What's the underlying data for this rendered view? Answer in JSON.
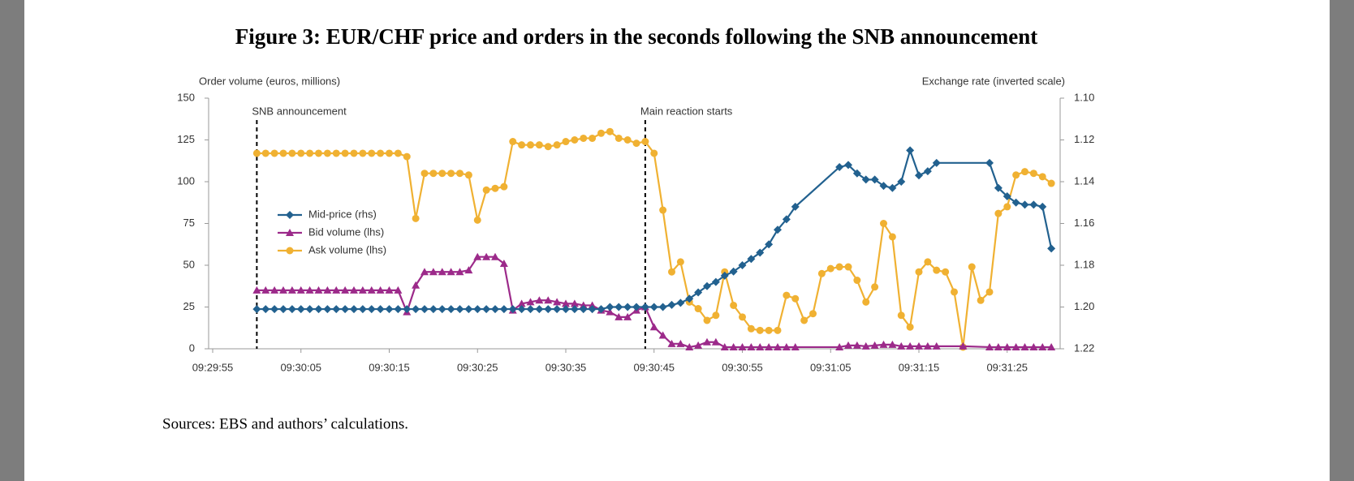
{
  "chart_data": {
    "type": "line",
    "title": "Figure 3: EUR/CHF price and orders in the seconds following the SNB announcement",
    "y_label": "Order volume (euros, millions)",
    "y2_label": "Exchange rate (inverted scale)",
    "source": "Sources: EBS and authors’ calculations.",
    "legend": "center left",
    "grid": false,
    "xlim": [
      "09:29:55",
      "09:31:31"
    ],
    "xticks": [
      "09:29:55",
      "09:30:05",
      "09:30:15",
      "09:30:25",
      "09:30:35",
      "09:30:45",
      "09:30:55",
      "09:31:05",
      "09:31:15",
      "09:31:25"
    ],
    "ylim": [
      0,
      150
    ],
    "yticks": [
      0,
      25,
      50,
      75,
      100,
      125,
      150
    ],
    "y2lim": [
      1.22,
      1.1
    ],
    "y2ticks": [
      1.22,
      {
        "value": 1.2,
        "label": "1.20"
      },
      1.18,
      1.16,
      1.14,
      1.12,
      {
        "value": 1.1,
        "label": "1.10"
      }
    ],
    "annotations": [
      {
        "text": "SNB announcement",
        "x": "09:30:00"
      },
      {
        "text": "Main reaction starts",
        "x": "09:30:44"
      }
    ],
    "series": [
      {
        "name": "Mid-price (rhs)",
        "color": "#22618f",
        "marker": "diamond",
        "axis": "y2",
        "x": [
          "09:30:00",
          "09:30:01",
          "09:30:02",
          "09:30:03",
          "09:30:04",
          "09:30:05",
          "09:30:06",
          "09:30:07",
          "09:30:08",
          "09:30:09",
          "09:30:10",
          "09:30:11",
          "09:30:12",
          "09:30:13",
          "09:30:14",
          "09:30:15",
          "09:30:16",
          "09:30:17",
          "09:30:18",
          "09:30:19",
          "09:30:20",
          "09:30:21",
          "09:30:22",
          "09:30:23",
          "09:30:24",
          "09:30:25",
          "09:30:26",
          "09:30:27",
          "09:30:28",
          "09:30:29",
          "09:30:30",
          "09:30:31",
          "09:30:32",
          "09:30:33",
          "09:30:34",
          "09:30:35",
          "09:30:36",
          "09:30:37",
          "09:30:38",
          "09:30:39",
          "09:30:40",
          "09:30:41",
          "09:30:42",
          "09:30:43",
          "09:30:44",
          "09:30:45",
          "09:30:46",
          "09:30:47",
          "09:30:48",
          "09:30:49",
          "09:30:50",
          "09:30:51",
          "09:30:52",
          "09:30:53",
          "09:30:54",
          "09:30:55",
          "09:30:56",
          "09:30:57",
          "09:30:58",
          "09:30:59",
          "09:31:00",
          "09:31:01",
          "09:31:06",
          "09:31:07",
          "09:31:08",
          "09:31:09",
          "09:31:10",
          "09:31:11",
          "09:31:12",
          "09:31:13",
          "09:31:14",
          "09:31:15",
          "09:31:16",
          "09:31:17",
          "09:31:23",
          "09:31:24",
          "09:31:25",
          "09:31:26",
          "09:31:27",
          "09:31:28",
          "09:31:29",
          "09:31:30"
        ],
        "values": [
          1.201,
          1.201,
          1.201,
          1.201,
          1.201,
          1.201,
          1.201,
          1.201,
          1.201,
          1.201,
          1.201,
          1.201,
          1.201,
          1.201,
          1.201,
          1.201,
          1.201,
          1.201,
          1.201,
          1.201,
          1.201,
          1.201,
          1.201,
          1.201,
          1.201,
          1.201,
          1.201,
          1.201,
          1.201,
          1.201,
          1.201,
          1.201,
          1.201,
          1.201,
          1.201,
          1.201,
          1.201,
          1.201,
          1.201,
          1.201,
          1.2,
          1.2,
          1.2,
          1.2,
          1.2,
          1.2,
          1.2,
          1.199,
          1.198,
          1.196,
          1.193,
          1.19,
          1.188,
          1.185,
          1.183,
          1.18,
          1.177,
          1.174,
          1.17,
          1.163,
          1.158,
          1.152,
          1.133,
          1.132,
          1.136,
          1.139,
          1.139,
          1.142,
          1.143,
          1.14,
          1.125,
          1.137,
          1.135,
          1.131,
          1.131,
          1.143,
          1.147,
          1.15,
          1.151,
          1.151,
          1.152,
          1.172
        ]
      },
      {
        "name": "Bid volume (lhs)",
        "color": "#9c2a8a",
        "marker": "triangle",
        "x": [
          "09:30:00",
          "09:30:01",
          "09:30:02",
          "09:30:03",
          "09:30:04",
          "09:30:05",
          "09:30:06",
          "09:30:07",
          "09:30:08",
          "09:30:09",
          "09:30:10",
          "09:30:11",
          "09:30:12",
          "09:30:13",
          "09:30:14",
          "09:30:15",
          "09:30:16",
          "09:30:17",
          "09:30:18",
          "09:30:19",
          "09:30:20",
          "09:30:21",
          "09:30:22",
          "09:30:23",
          "09:30:24",
          "09:30:25",
          "09:30:26",
          "09:30:27",
          "09:30:28",
          "09:30:29",
          "09:30:30",
          "09:30:31",
          "09:30:32",
          "09:30:33",
          "09:30:34",
          "09:30:35",
          "09:30:36",
          "09:30:37",
          "09:30:38",
          "09:30:39",
          "09:30:40",
          "09:30:41",
          "09:30:42",
          "09:30:43",
          "09:30:44",
          "09:30:45",
          "09:30:46",
          "09:30:47",
          "09:30:48",
          "09:30:49",
          "09:30:50",
          "09:30:51",
          "09:30:52",
          "09:30:53",
          "09:30:54",
          "09:30:55",
          "09:30:56",
          "09:30:57",
          "09:30:58",
          "09:30:59",
          "09:31:00",
          "09:31:01",
          "09:31:06",
          "09:31:07",
          "09:31:08",
          "09:31:09",
          "09:31:10",
          "09:31:11",
          "09:31:12",
          "09:31:13",
          "09:31:14",
          "09:31:15",
          "09:31:16",
          "09:31:17",
          "09:31:20",
          "09:31:23",
          "09:31:24",
          "09:31:25",
          "09:31:26",
          "09:31:27",
          "09:31:28",
          "09:31:29",
          "09:31:30"
        ],
        "values": [
          35,
          35,
          35,
          35,
          35,
          35,
          35,
          35,
          35,
          35,
          35,
          35,
          35,
          35,
          35,
          35,
          35,
          22,
          38,
          46,
          46,
          46,
          46,
          46,
          47,
          55,
          55,
          55,
          51,
          23,
          27,
          28,
          29,
          29,
          28,
          27,
          27,
          26,
          26,
          23,
          22,
          19,
          19,
          23,
          25,
          13,
          8,
          3,
          3,
          1,
          2,
          4,
          4,
          1,
          1,
          1,
          1,
          1,
          1,
          1,
          1,
          1,
          1,
          2,
          2,
          1.5,
          2,
          2.5,
          2.5,
          1.5,
          1.5,
          1.5,
          1.5,
          1.5,
          1.5,
          1,
          1,
          1,
          1,
          1,
          1,
          1,
          1
        ]
      },
      {
        "name": "Ask volume (lhs)",
        "color": "#f0b132",
        "marker": "circle",
        "x": [
          "09:30:00",
          "09:30:01",
          "09:30:02",
          "09:30:03",
          "09:30:04",
          "09:30:05",
          "09:30:06",
          "09:30:07",
          "09:30:08",
          "09:30:09",
          "09:30:10",
          "09:30:11",
          "09:30:12",
          "09:30:13",
          "09:30:14",
          "09:30:15",
          "09:30:16",
          "09:30:17",
          "09:30:18",
          "09:30:19",
          "09:30:20",
          "09:30:21",
          "09:30:22",
          "09:30:23",
          "09:30:24",
          "09:30:25",
          "09:30:26",
          "09:30:27",
          "09:30:28",
          "09:30:29",
          "09:30:30",
          "09:30:31",
          "09:30:32",
          "09:30:33",
          "09:30:34",
          "09:30:35",
          "09:30:36",
          "09:30:37",
          "09:30:38",
          "09:30:39",
          "09:30:40",
          "09:30:41",
          "09:30:42",
          "09:30:43",
          "09:30:44",
          "09:30:45",
          "09:30:46",
          "09:30:47",
          "09:30:48",
          "09:30:49",
          "09:30:50",
          "09:30:51",
          "09:30:52",
          "09:30:53",
          "09:30:54",
          "09:30:55",
          "09:30:56",
          "09:30:57",
          "09:30:58",
          "09:30:59",
          "09:31:00",
          "09:31:01",
          "09:31:02",
          "09:31:03",
          "09:31:04",
          "09:31:05",
          "09:31:06",
          "09:31:07",
          "09:31:08",
          "09:31:09",
          "09:31:10",
          "09:31:11",
          "09:31:12",
          "09:31:13",
          "09:31:14",
          "09:31:15",
          "09:31:16",
          "09:31:17",
          "09:31:18",
          "09:31:19",
          "09:31:20",
          "09:31:21",
          "09:31:22",
          "09:31:23",
          "09:31:24",
          "09:31:25",
          "09:31:26",
          "09:31:27",
          "09:31:28",
          "09:31:29",
          "09:31:30"
        ],
        "values": [
          117,
          117,
          117,
          117,
          117,
          117,
          117,
          117,
          117,
          117,
          117,
          117,
          117,
          117,
          117,
          117,
          117,
          115,
          78,
          105,
          105,
          105,
          105,
          105,
          104,
          77,
          95,
          96,
          97,
          124,
          122,
          122,
          122,
          121,
          122,
          124,
          125,
          126,
          126,
          129,
          130,
          126,
          125,
          123,
          124,
          117,
          83,
          46,
          52,
          28,
          24,
          17,
          20,
          46,
          26,
          19,
          12,
          11,
          11,
          11,
          32,
          30,
          17,
          21,
          45,
          48,
          49,
          49,
          41,
          28,
          37,
          75,
          67,
          20,
          13,
          46,
          52,
          47,
          46,
          34,
          1,
          49,
          29,
          34,
          81,
          85,
          104,
          106,
          105,
          103,
          99
        ]
      }
    ]
  }
}
